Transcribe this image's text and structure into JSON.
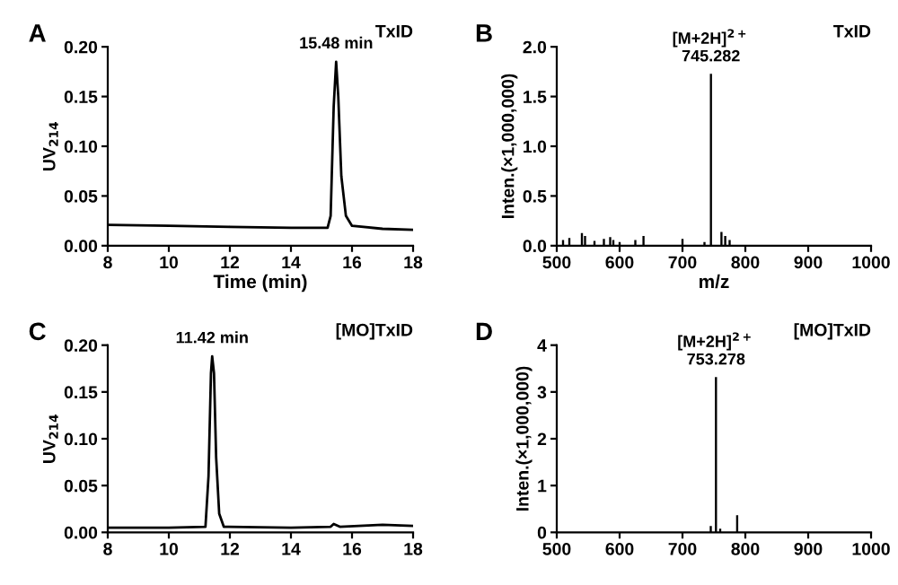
{
  "chart_data": [
    {
      "type": "line",
      "title": "A",
      "xlabel": "Time (min)",
      "ylabel": "UV$_{214}$",
      "annotations": [
        "TxID",
        {
          "text": "15.48 min",
          "x": 15.48,
          "y": 0.185
        }
      ],
      "series": [
        {
          "color": "#000000",
          "x": [
            8,
            10,
            12,
            14,
            15.2,
            15.3,
            15.4,
            15.48,
            15.55,
            15.65,
            15.8,
            16,
            17,
            18
          ],
          "values": [
            0.021,
            0.02,
            0.019,
            0.018,
            0.018,
            0.03,
            0.14,
            0.185,
            0.15,
            0.07,
            0.03,
            0.02,
            0.017,
            0.016
          ]
        }
      ],
      "xlim": [
        8,
        18
      ],
      "xticks": [
        8,
        10,
        12,
        14,
        16,
        18
      ],
      "ylim": [
        0,
        0.2
      ],
      "yticks": [
        {
          "value": 0,
          "label": "0.00"
        },
        {
          "value": 0.05,
          "label": "0.05"
        },
        {
          "value": 0.1,
          "label": "0.10"
        },
        {
          "value": 0.15,
          "label": "0.15"
        },
        {
          "value": 0.2,
          "label": "0.20"
        }
      ],
      "grid": false,
      "legend": false
    },
    {
      "type": "bar",
      "title": "B",
      "xlabel": "m/z",
      "ylabel": "Inten.(×1,000,000)",
      "annotations": [
        "TxID",
        {
          "text": "[M+2H]$^{2+}$\n745.282",
          "x": 745.282,
          "y": 1.72
        }
      ],
      "series": [
        {
          "color": "#000000",
          "x": [
            510,
            520,
            540,
            545,
            560,
            575,
            585,
            590,
            600,
            625,
            638,
            700,
            735,
            745.282,
            762,
            768,
            775
          ],
          "values": [
            0.05,
            0.07,
            0.12,
            0.09,
            0.04,
            0.06,
            0.08,
            0.05,
            0.03,
            0.05,
            0.09,
            0.06,
            0.03,
            1.72,
            0.13,
            0.09,
            0.05
          ]
        }
      ],
      "xlim": [
        500,
        1000
      ],
      "xticks": [
        500,
        600,
        700,
        800,
        900,
        1000
      ],
      "ylim": [
        0,
        2
      ],
      "yticks": [
        {
          "value": 0,
          "label": "0.0"
        },
        {
          "value": 0.5,
          "label": "0.5"
        },
        {
          "value": 1,
          "label": "1.0"
        },
        {
          "value": 1.5,
          "label": "1.5"
        },
        {
          "value": 2,
          "label": "2.0"
        }
      ],
      "grid": false,
      "legend": false
    },
    {
      "type": "line",
      "title": "C",
      "ylabel": "UV$_{214}$",
      "annotations": [
        "[MO]TxID",
        {
          "text": "11.42 min",
          "x": 11.42,
          "y": 0.188
        }
      ],
      "series": [
        {
          "color": "#000000",
          "x": [
            8,
            10,
            11.2,
            11.3,
            11.38,
            11.42,
            11.48,
            11.55,
            11.65,
            11.8,
            14,
            15.3,
            15.4,
            15.6,
            17,
            18
          ],
          "values": [
            0.005,
            0.005,
            0.006,
            0.06,
            0.17,
            0.188,
            0.17,
            0.08,
            0.02,
            0.006,
            0.005,
            0.006,
            0.009,
            0.006,
            0.008,
            0.007
          ]
        }
      ],
      "xlim": [
        8,
        18
      ],
      "xticks": [
        8,
        10,
        12,
        14,
        16,
        18
      ],
      "ylim": [
        0,
        0.2
      ],
      "yticks": [
        {
          "value": 0,
          "label": "0.00"
        },
        {
          "value": 0.05,
          "label": "0.05"
        },
        {
          "value": 0.1,
          "label": "0.10"
        },
        {
          "value": 0.15,
          "label": "0.15"
        },
        {
          "value": 0.2,
          "label": "0.20"
        }
      ],
      "grid": false,
      "legend": false
    },
    {
      "type": "bar",
      "title": "D",
      "ylabel": "Inten.(×1,000,000)",
      "annotations": [
        "[MO]TxID",
        {
          "text": "[M+2H]$^{2+}$\n753.278",
          "x": 753.278,
          "y": 3.3
        }
      ],
      "series": [
        {
          "color": "#000000",
          "x": [
            745,
            753.278,
            760,
            787
          ],
          "values": [
            0.12,
            3.3,
            0.06,
            0.35
          ]
        }
      ],
      "xlim": [
        500,
        1000
      ],
      "xticks": [
        500,
        600,
        700,
        800,
        900,
        1000
      ],
      "ylim": [
        0,
        4
      ],
      "yticks": [
        0,
        1,
        2,
        3,
        4
      ],
      "grid": false,
      "legend": false
    }
  ]
}
